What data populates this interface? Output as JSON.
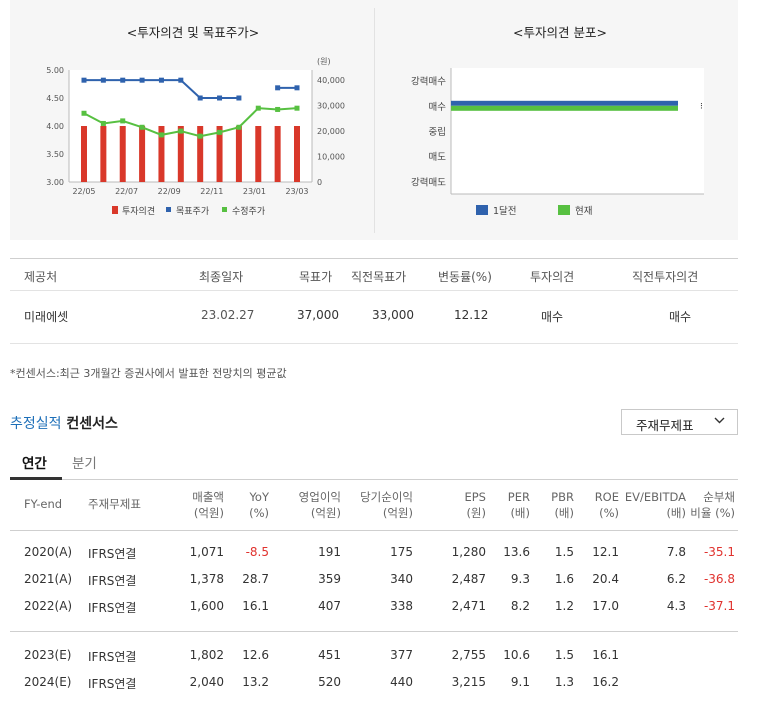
{
  "left_chart": {
    "title": "<투자의견 및 목표주가>",
    "right_unit": "(원)",
    "left_axis_ticks": [
      "5.00",
      "4.50",
      "4.00",
      "3.50",
      "3.00"
    ],
    "right_axis_ticks": [
      "40,000",
      "30,000",
      "20,000",
      "10,000",
      "0"
    ],
    "x_ticks": [
      "22/05",
      "22/07",
      "22/09",
      "22/11",
      "23/01",
      "23/03"
    ],
    "legend": [
      "투자의견",
      "목표주가",
      "수정주가"
    ],
    "colors": {
      "opinion": "#d9382a",
      "target": "#2f62ad",
      "adjusted": "#57c041"
    }
  },
  "right_chart": {
    "title": "<투자의견 분포>",
    "categories": [
      "강력매수",
      "매수",
      "중립",
      "매도",
      "강력매도"
    ],
    "legend": [
      "1달전",
      "현재"
    ],
    "colors": {
      "month_ago": "#2f62ad",
      "current": "#57c041"
    }
  },
  "chart_data": [
    {
      "type": "bar",
      "title": "<투자의견 및 목표주가>",
      "ylim": [
        3.0,
        5.0
      ],
      "ylim_right": [
        0,
        40000
      ],
      "series": [
        {
          "name": "투자의견",
          "type": "bar",
          "axis": "left",
          "values": [
            4,
            4,
            4,
            4,
            4,
            4,
            4,
            4,
            4,
            4,
            4,
            4
          ]
        },
        {
          "name": "목표주가",
          "type": "line",
          "axis": "right",
          "values": [
            40000,
            40000,
            40000,
            40000,
            40000,
            40000,
            33000,
            33000,
            33000,
            null,
            37000,
            37000
          ]
        },
        {
          "name": "수정주가",
          "type": "line",
          "axis": "right",
          "values": [
            27000,
            23000,
            24000,
            21500,
            18500,
            20000,
            18000,
            19500,
            21500,
            29000,
            28500,
            29000
          ]
        }
      ]
    },
    {
      "type": "bar",
      "title": "<투자의견 분포>",
      "categories": [
        "강력매수",
        "매수",
        "중립",
        "매도",
        "강력매도"
      ],
      "series": [
        {
          "name": "1달전",
          "values": [
            0,
            1,
            0,
            0,
            0
          ]
        },
        {
          "name": "현재",
          "values": [
            0,
            1,
            0,
            0,
            0
          ]
        }
      ]
    }
  ],
  "consensus": {
    "headers": [
      "제공처",
      "최종일자",
      "목표가",
      "직전목표가",
      "변동률(%)",
      "투자의견",
      "직전투자의견"
    ],
    "row": [
      "미래에셋",
      "23.02.27",
      "37,000",
      "33,000",
      "12.12",
      "매수",
      "매수"
    ],
    "note": "*컨센서스:최근 3개월간 증권사에서 발표한 전망치의 평균값"
  },
  "estimates": {
    "title_blue": "추정실적",
    "title_rest": "컨센서스",
    "select_value": "주재무제표",
    "tabs": [
      "연간",
      "분기"
    ],
    "headers": [
      [
        "FY-end",
        ""
      ],
      [
        "주재무제표",
        ""
      ],
      [
        "매출액",
        "(억원)"
      ],
      [
        "YoY",
        "(%)"
      ],
      [
        "영업이익",
        "(억원)"
      ],
      [
        "당기순이익",
        "(억원)"
      ],
      [
        "EPS",
        "(원)"
      ],
      [
        "PER",
        "(배)"
      ],
      [
        "PBR",
        "(배)"
      ],
      [
        "ROE",
        "(%)"
      ],
      [
        "EV/EBITDA",
        "(배)"
      ],
      [
        "순부채",
        "비율 (%)"
      ]
    ],
    "rows": [
      [
        "2020(A)",
        "IFRS연결",
        "1,071",
        "-8.5",
        "191",
        "175",
        "1,280",
        "13.6",
        "1.5",
        "12.1",
        "7.8",
        "-35.1"
      ],
      [
        "2021(A)",
        "IFRS연결",
        "1,378",
        "28.7",
        "359",
        "340",
        "2,487",
        "9.3",
        "1.6",
        "20.4",
        "6.2",
        "-36.8"
      ],
      [
        "2022(A)",
        "IFRS연결",
        "1,600",
        "16.1",
        "407",
        "338",
        "2,471",
        "8.2",
        "1.2",
        "17.0",
        "4.3",
        "-37.1"
      ],
      [
        "2023(E)",
        "IFRS연결",
        "1,802",
        "12.6",
        "451",
        "377",
        "2,755",
        "10.6",
        "1.5",
        "16.1",
        "",
        ""
      ],
      [
        "2024(E)",
        "IFRS연결",
        "2,040",
        "13.2",
        "520",
        "440",
        "3,215",
        "9.1",
        "1.3",
        "16.2",
        "",
        ""
      ]
    ]
  }
}
